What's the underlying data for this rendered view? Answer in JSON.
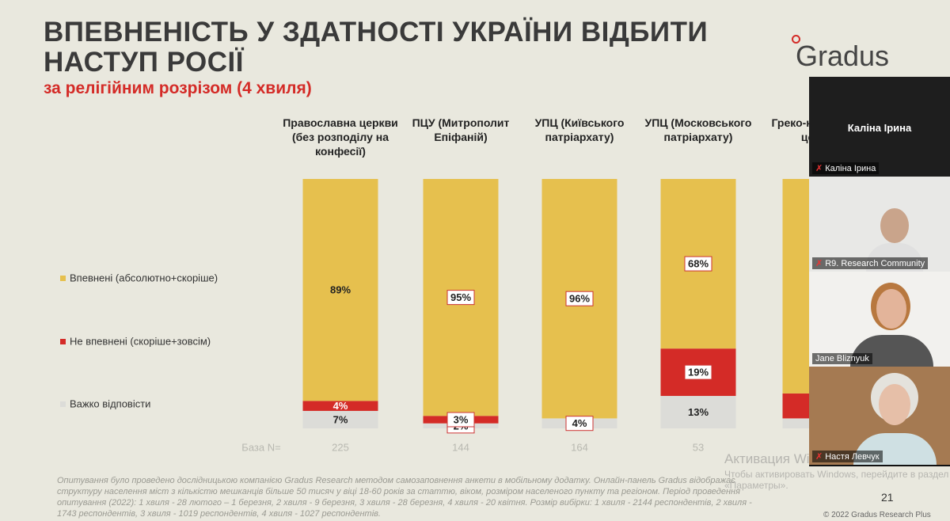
{
  "slide": {
    "title": "ВПЕВНЕНІСТЬ У ЗДАТНОСТІ УКРАЇНИ ВІДБИТИ НАСТУП РОСІЇ",
    "subtitle": "за релігійним розрізом (4 хвиля)",
    "logo": "Gradus",
    "footnote": "Опитування було проведено дослідницькою компанією Gradus Research методом самозаповнення анкети в мобільному додатку. Онлайн-панель Gradus відображає структуру населення міст з кількістю мешканців більше 50 тисяч у віці 18-60 років за статтю, віком, розміром населеного пункту та регіоном. Період проведення опитування (2022): 1 хвиля - 28 лютого – 1 березня, 2 хвиля - 9 березня, 3 хвиля - 28 березня, 4 хвиля - 20 квітня. Розмір вибірки: 1 хвиля - 2144 респондентів, 2 хвиля - 1743 респондентів, 3 хвиля - 1019 респондентів, 4 хвиля - 1027 респондентів.",
    "page_number": "21",
    "copyright": "© 2022 Gradus Research Plus"
  },
  "chart_data": {
    "type": "stacked_bar",
    "categories": [
      "Православна церкви (без розподілу на конфесії)",
      "ПЦУ (Митрополит Епіфаній)",
      "УПЦ (Київського патріархату)",
      "УПЦ (Московського патріархату)",
      "Греко-католицька церква"
    ],
    "series": [
      {
        "name": "Впевнені (абсолютно+скоріше)",
        "color": "#e6c04e",
        "values": [
          89,
          95,
          96,
          68,
          86
        ],
        "value_labels": [
          "89%",
          "95%",
          "96%",
          "68%",
          null
        ]
      },
      {
        "name": "Не впевнені (скоріше+зовсім)",
        "color": "#d42b27",
        "values": [
          4,
          3,
          null,
          19,
          10
        ],
        "value_labels": [
          "4%",
          "3%",
          null,
          "19%",
          null
        ]
      },
      {
        "name": "Важко відповісти",
        "color": "#dcdcd8",
        "values": [
          7,
          2,
          4,
          13,
          4
        ],
        "value_labels": [
          "7%",
          "2%",
          "4%",
          "13%",
          null
        ]
      }
    ],
    "base_label": "База N=",
    "base_n": [
      225,
      144,
      164,
      53,
      null
    ]
  },
  "windows": {
    "title": "Активация Windows",
    "text": "Чтобы активировать Windows, перейдите в раздел «Параметры»."
  },
  "call": {
    "active_speaker": "Каліна Ірина",
    "participants": [
      "Каліна Ірина",
      "R9. Research Community",
      "Jane Bliznyuk",
      "Настя Левчук"
    ]
  }
}
